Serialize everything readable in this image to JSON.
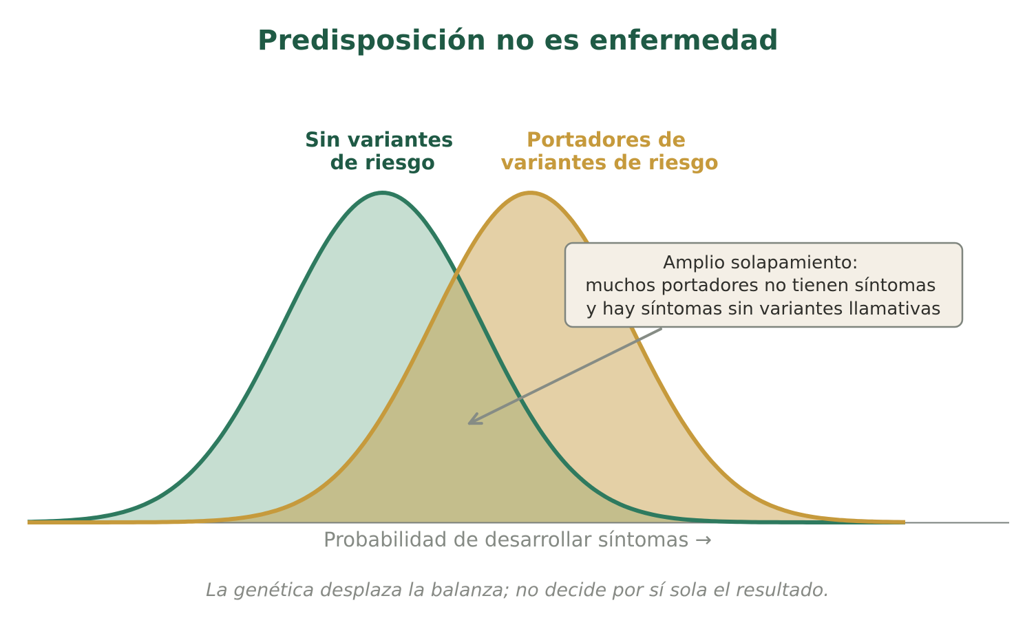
{
  "title": "Predisposición no es enfermedad",
  "footnote": "La genética desplaza la balanza; no decide por sí sola el resultado.",
  "colors": {
    "title": "#1f5a45",
    "no_variant_line": "#2e7a5f",
    "no_variant_fill": "#c6ded1",
    "carrier_line": "#c69a3c",
    "carrier_fill": "#e4d0a6",
    "overlap_fill": "#c4be8c",
    "annotation_box": "#f4efe6",
    "annotation_border": "#7f857e",
    "arrow": "#868c85",
    "axis": "#7a807c"
  },
  "chart_data": {
    "type": "area",
    "xlabel": "Probabilidad de desarrollar síntomas  →",
    "ylabel": "",
    "x_range": [
      -3.6,
      5.3
    ],
    "y_range": [
      0,
      1.0
    ],
    "grid": false,
    "series": [
      {
        "name_lines": [
          "Sin variantes",
          "de riesgo"
        ],
        "distribution": "normal",
        "mean": 0,
        "sd": 1,
        "peak": 1.0,
        "label_color": "#1f5a45"
      },
      {
        "name_lines": [
          "Portadores de",
          "variantes de riesgo"
        ],
        "distribution": "normal",
        "mean": 1.5,
        "sd": 1,
        "peak": 1.0,
        "label_color": "#c69a3c"
      }
    ],
    "annotation": {
      "lines": [
        "Amplio solapamiento:",
        "muchos portadores no tienen síntomas",
        "y hay síntomas sin variantes llamativas"
      ],
      "points_to": {
        "x": 0.88,
        "y": 0.3
      }
    }
  }
}
